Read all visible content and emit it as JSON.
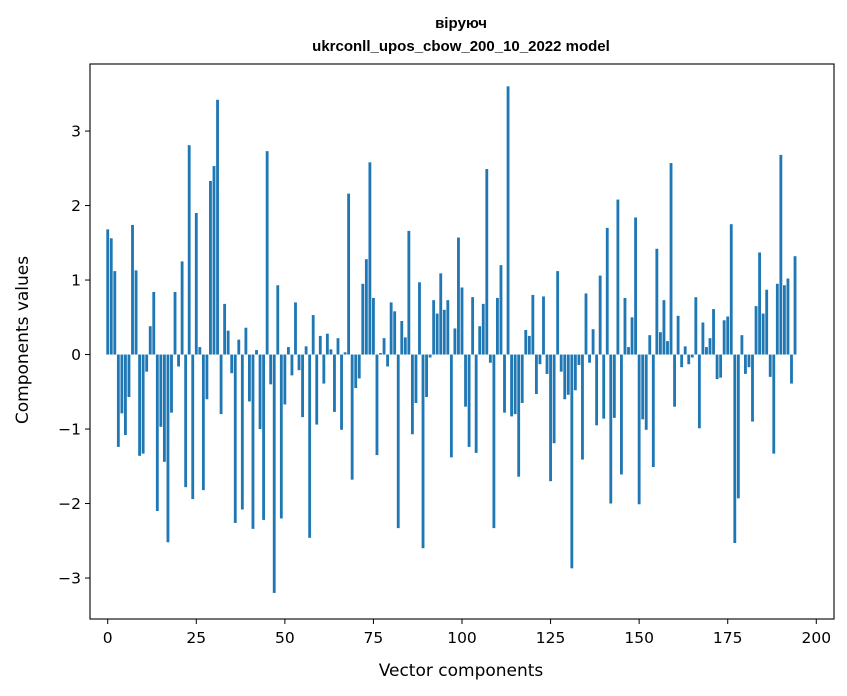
{
  "chart_data": {
    "type": "bar",
    "title": "віpуюч",
    "subtitle": "ukrconll_upos_cbow_200_10_2022 model",
    "xlabel": "Vector components",
    "ylabel": "Components values",
    "xlim": [
      -5,
      205
    ],
    "ylim": [
      -3.55,
      3.9
    ],
    "xticks": [
      0,
      25,
      50,
      75,
      100,
      125,
      150,
      175,
      200
    ],
    "yticks": [
      -3,
      -2,
      -1,
      0,
      1,
      2,
      3
    ],
    "grid": false,
    "bar_color": "#1f77b4",
    "values": [
      1.68,
      1.56,
      1.12,
      -1.24,
      -0.79,
      -1.08,
      -0.57,
      1.74,
      1.13,
      -1.36,
      -1.33,
      -0.23,
      0.38,
      0.84,
      -2.1,
      -0.97,
      -1.44,
      -2.52,
      -0.78,
      0.84,
      -0.16,
      1.25,
      -1.78,
      2.81,
      -1.94,
      1.9,
      0.1,
      -1.82,
      -0.6,
      2.33,
      2.53,
      3.42,
      -0.8,
      0.68,
      0.32,
      -0.25,
      -2.26,
      0.2,
      -2.08,
      0.36,
      -0.63,
      -2.34,
      0.06,
      -1.0,
      -2.22,
      2.73,
      -0.4,
      -3.2,
      0.93,
      -2.2,
      -0.67,
      0.1,
      -0.28,
      0.7,
      -0.21,
      -0.84,
      0.11,
      -2.46,
      0.53,
      -0.94,
      0.25,
      -0.39,
      0.28,
      0.07,
      -0.77,
      0.22,
      -1.01,
      0.03,
      2.16,
      -1.68,
      -0.45,
      -0.32,
      0.95,
      1.28,
      2.58,
      0.76,
      -1.35,
      0.02,
      0.22,
      -0.16,
      0.7,
      0.58,
      -2.33,
      0.45,
      0.23,
      1.66,
      -1.07,
      -0.65,
      0.97,
      -2.6,
      -0.57,
      -0.04,
      0.73,
      0.55,
      1.09,
      0.6,
      0.73,
      -1.38,
      0.35,
      1.57,
      0.9,
      -0.7,
      -1.24,
      0.77,
      -1.32,
      0.38,
      0.68,
      2.49,
      -0.11,
      -2.33,
      0.76,
      1.2,
      -0.78,
      3.6,
      -0.83,
      -0.8,
      -1.64,
      -0.65,
      0.33,
      0.25,
      0.8,
      -0.53,
      -0.13,
      0.78,
      -0.26,
      -1.7,
      -1.19,
      1.12,
      -0.23,
      -0.6,
      -0.54,
      -2.87,
      -0.48,
      -0.14,
      -1.41,
      0.82,
      -0.11,
      0.34,
      -0.95,
      1.06,
      -0.86,
      1.7,
      -2.0,
      -0.85,
      2.08,
      -1.61,
      0.76,
      0.1,
      0.5,
      1.84,
      -2.01,
      -0.87,
      -1.01,
      0.26,
      -1.51,
      1.42,
      0.3,
      0.73,
      0.18,
      2.57,
      -0.7,
      0.52,
      -0.17,
      0.11,
      -0.13,
      -0.04,
      0.77,
      -0.99,
      0.43,
      0.1,
      0.22,
      0.61,
      -0.33,
      -0.31,
      0.46,
      0.51,
      1.75,
      -2.53,
      -1.93,
      0.26,
      -0.26,
      -0.17,
      -0.9,
      0.65,
      1.37,
      0.55,
      0.87,
      -0.3,
      -1.33,
      0.95,
      2.68,
      0.93,
      1.02,
      -0.39,
      1.32
    ]
  }
}
